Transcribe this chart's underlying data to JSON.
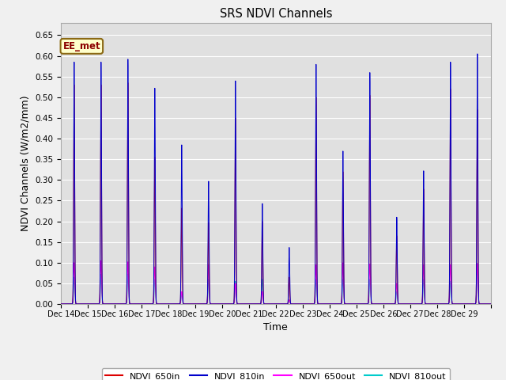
{
  "title": "SRS NDVI Channels",
  "xlabel": "Time",
  "ylabel": "NDVI Channels (W/m2/mm)",
  "ylim": [
    0.0,
    0.68
  ],
  "yticks": [
    0.0,
    0.05,
    0.1,
    0.15,
    0.2,
    0.25,
    0.3,
    0.35,
    0.4,
    0.45,
    0.5,
    0.55,
    0.6,
    0.65
  ],
  "label_text": "EE_met",
  "legend_entries": [
    "NDVI_650in",
    "NDVI_810in",
    "NDVI_650out",
    "NDVI_810out"
  ],
  "colors": {
    "NDVI_650in": "#dd0000",
    "NDVI_810in": "#0000cc",
    "NDVI_650out": "#ff00ff",
    "NDVI_810out": "#00cccc"
  },
  "fig_facecolor": "#f0f0f0",
  "plot_bg": "#e0e0e0",
  "n_days": 16,
  "start_day": 14,
  "peak_810in": [
    0.585,
    0.585,
    0.592,
    0.522,
    0.385,
    0.297,
    0.54,
    0.243,
    0.137,
    0.58,
    0.37,
    0.56,
    0.21,
    0.322,
    0.585,
    0.605
  ],
  "peak_650in": [
    0.53,
    0.53,
    0.535,
    0.355,
    0.232,
    0.197,
    0.45,
    0.2,
    0.065,
    0.5,
    0.32,
    0.505,
    0.165,
    0.278,
    0.52,
    0.47
  ],
  "peak_650out": [
    0.1,
    0.105,
    0.102,
    0.09,
    0.03,
    0.095,
    0.05,
    0.03,
    0.01,
    0.095,
    0.1,
    0.097,
    0.05,
    0.095,
    0.095,
    0.098
  ],
  "peak_810out": [
    0.065,
    0.072,
    0.073,
    0.06,
    0.025,
    0.06,
    0.055,
    0.06,
    0.01,
    0.06,
    0.06,
    0.06,
    0.03,
    0.06,
    0.055,
    0.098
  ],
  "tick_labels": [
    "Dec 14",
    "Dec 15",
    "Dec 16",
    "Dec 17",
    "Dec 18",
    "Dec 19",
    "Dec 20",
    "Dec 21",
    "Dec 22",
    "Dec 23",
    "Dec 24",
    "Dec 25",
    "Dec 26",
    "Dec 27",
    "Dec 28",
    "Dec 29"
  ]
}
